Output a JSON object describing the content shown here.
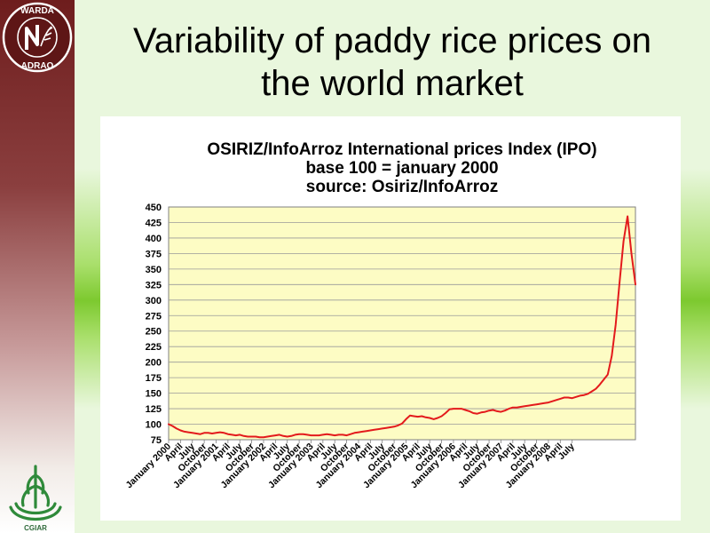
{
  "slide": {
    "title_line1": "Variability of paddy rice prices on",
    "title_line2": "the world market",
    "logo_top_text": "WARDA",
    "logo_bottom_text": "ADRAO",
    "cgiar_text": "CGIAR"
  },
  "colors": {
    "line": "#e31a1c",
    "plot_background": "#fdfcc4",
    "sidebar_top": "#6e1d1d",
    "band_green": "#7dc92f"
  },
  "chart_data": {
    "type": "line",
    "title_lines": [
      "OSIRIZ/InfoArroz International prices Index (IPO)",
      "base 100 = january 2000",
      "source: Osiriz/InfoArroz"
    ],
    "xlabel": "",
    "ylabel": "",
    "ylim": [
      75,
      450
    ],
    "yticks": [
      75,
      100,
      125,
      150,
      175,
      200,
      225,
      250,
      275,
      300,
      325,
      350,
      375,
      400,
      425,
      450
    ],
    "grid": true,
    "legend": "none",
    "x_tick_labels": [
      "January 2000",
      "April",
      "July",
      "October",
      "January 2001",
      "April",
      "July",
      "October",
      "January 2002",
      "April",
      "July",
      "October",
      "January 2003",
      "April",
      "July",
      "October",
      "January 2004",
      "April",
      "July",
      "October",
      "January 2005",
      "April",
      "July",
      "October",
      "January 2006",
      "April",
      "July",
      "October",
      "January 2007",
      "April",
      "July",
      "October",
      "January 2008",
      "April",
      "July"
    ],
    "series": [
      {
        "values": [
          100,
          97,
          93,
          90,
          88,
          87,
          86,
          85,
          84,
          86,
          86,
          85,
          86,
          87,
          86,
          84,
          83,
          82,
          83,
          81,
          80,
          80,
          80,
          79,
          79,
          80,
          81,
          82,
          83,
          81,
          80,
          81,
          83,
          84,
          84,
          83,
          82,
          82,
          82,
          83,
          84,
          83,
          82,
          83,
          83,
          82,
          84,
          86,
          87,
          88,
          89,
          90,
          91,
          92,
          93,
          94,
          95,
          96,
          98,
          101,
          108,
          114,
          113,
          112,
          113,
          111,
          110,
          108,
          110,
          113,
          118,
          124,
          125,
          125,
          125,
          123,
          121,
          118,
          117,
          119,
          120,
          122,
          123,
          121,
          120,
          122,
          125,
          127,
          127,
          128,
          129,
          130,
          131,
          132,
          133,
          134,
          135,
          137,
          139,
          141,
          143,
          143,
          142,
          144,
          146,
          147,
          149,
          153,
          157,
          164,
          172,
          180,
          210,
          260,
          330,
          395,
          435,
          375,
          325
        ]
      }
    ]
  }
}
